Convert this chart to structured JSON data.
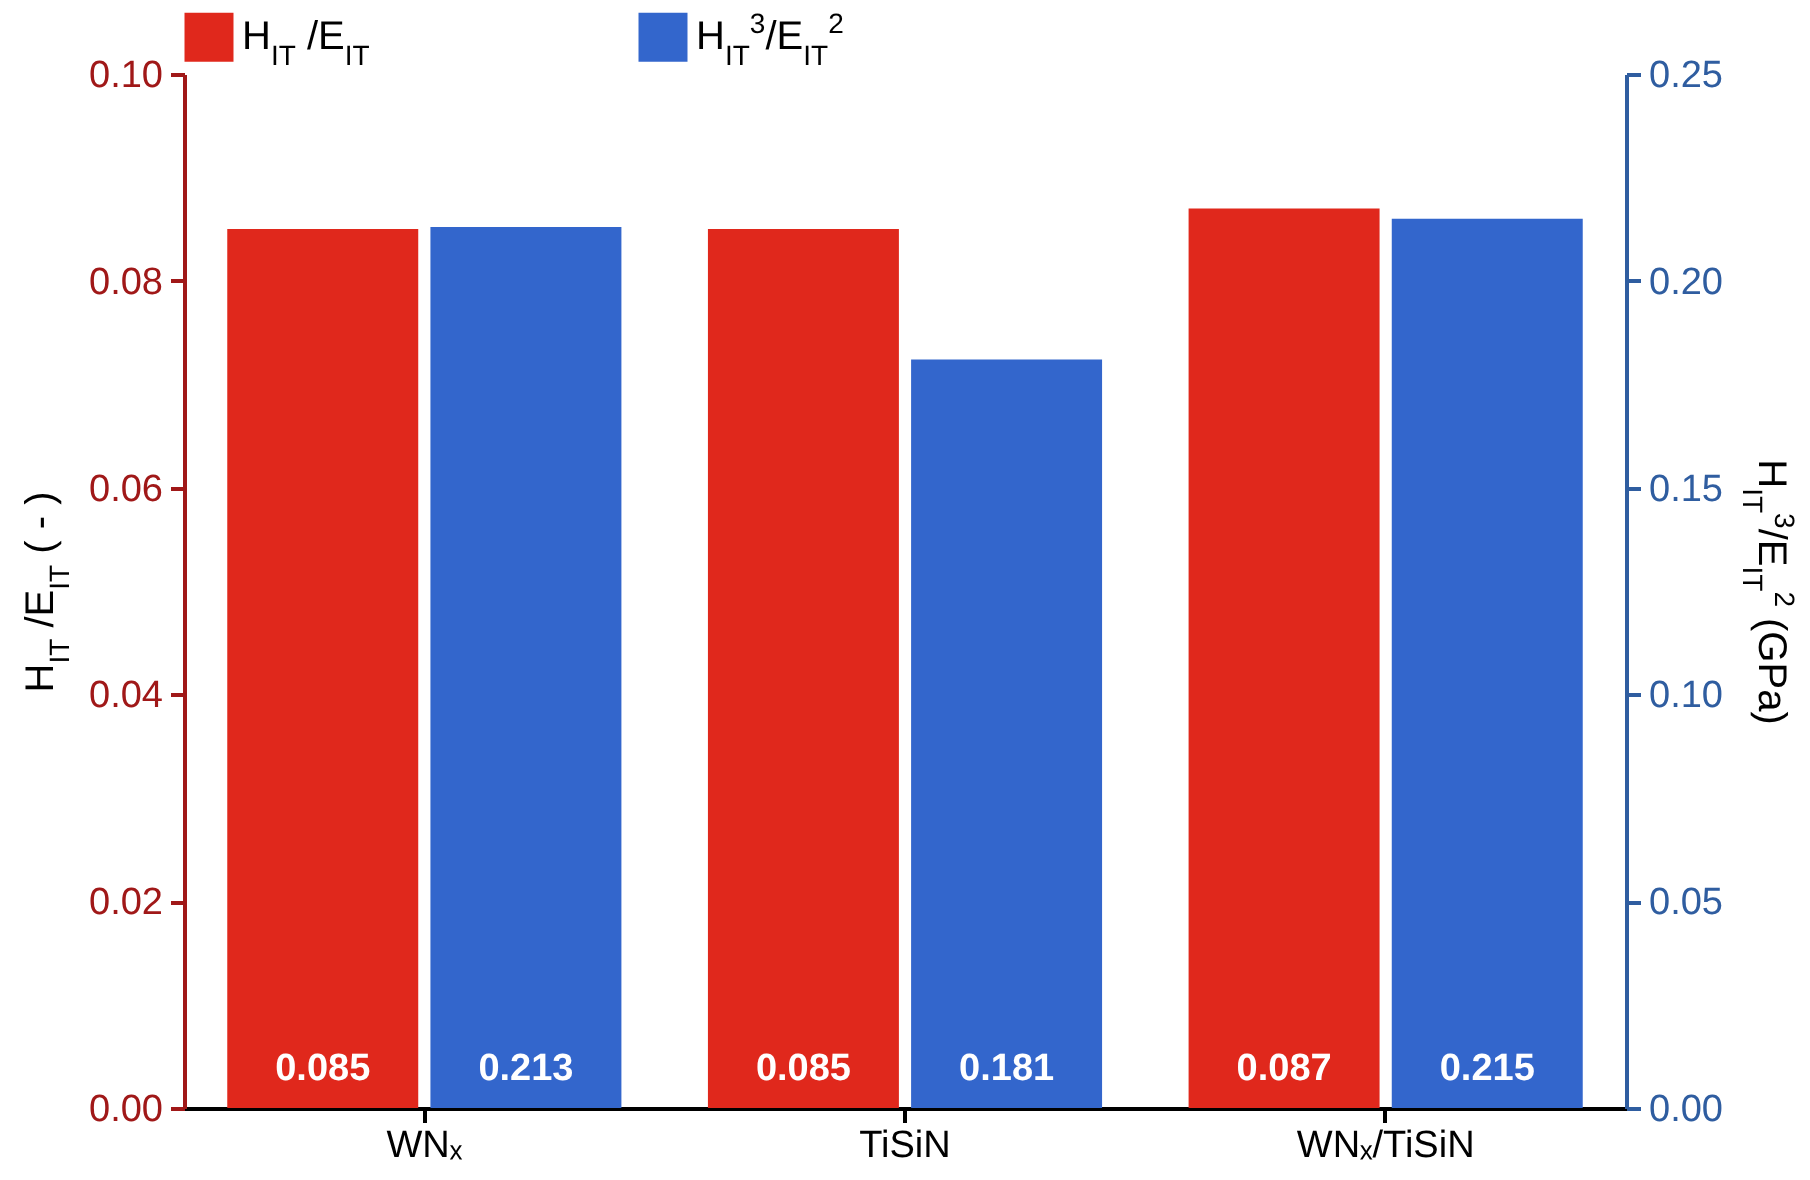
{
  "chart_data": {
    "type": "bar",
    "categories": [
      "WNₓ",
      "TiSiN",
      "WNₓ/TiSiN"
    ],
    "series": [
      {
        "name": "H$_{IT}$ /E$_{IT}$",
        "color": "#e0281c",
        "values": [
          0.085,
          0.085,
          0.087
        ]
      },
      {
        "name": "H$_{IT}$$^{3}$/E$_{IT}$$^{2}$",
        "color": "#3366cc",
        "values": [
          0.213,
          0.181,
          0.215
        ],
        "axis": "y2"
      }
    ],
    "ylabel": "H$_{IT}$ /E$_{IT}$ ( - )",
    "y2label": "H$_{IT}$$^{3}$/E$_{IT}$$^{2}$ (GPa)",
    "ylim": [
      0,
      0.1
    ],
    "yticks": [
      {
        "value": 0,
        "label": "0.00"
      },
      {
        "value": 0.02,
        "label": "0.02"
      },
      {
        "value": 0.04,
        "label": "0.04"
      },
      {
        "value": 0.06,
        "label": "0.06"
      },
      {
        "value": 0.08,
        "label": "0.08"
      },
      {
        "value": 0.1,
        "label": "0.10"
      }
    ],
    "y2lim": [
      0,
      0.25
    ],
    "y2ticks": [
      {
        "value": 0,
        "label": "0.00"
      },
      {
        "value": 0.05,
        "label": "0.05"
      },
      {
        "value": 0.1,
        "label": "0.10"
      },
      {
        "value": 0.15,
        "label": "0.15"
      },
      {
        "value": 0.2,
        "label": "0.20"
      },
      {
        "value": 0.25,
        "label": "0.25"
      }
    ],
    "data_labels": true,
    "legend": "top"
  }
}
